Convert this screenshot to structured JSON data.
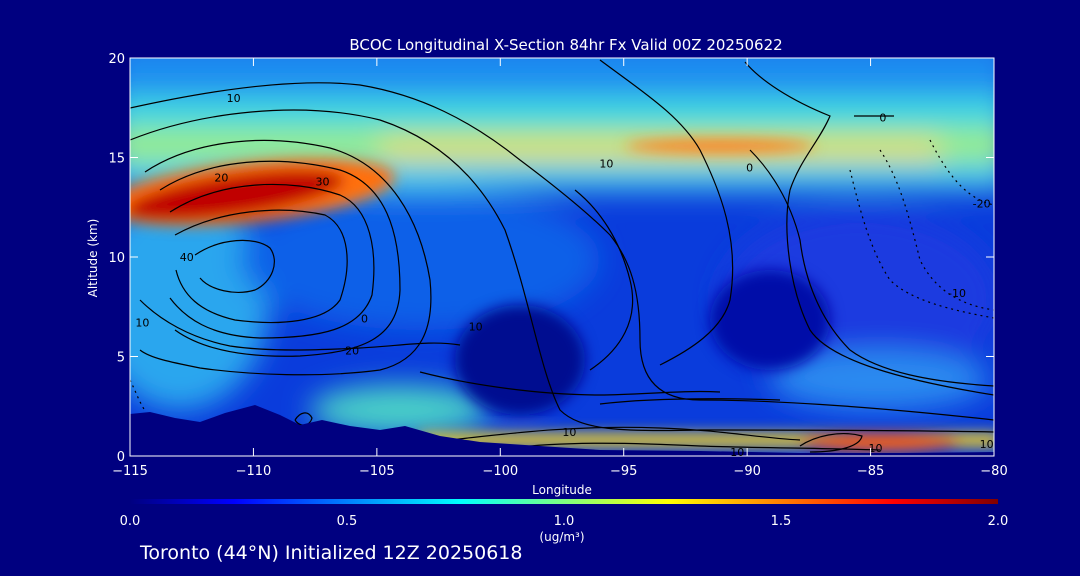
{
  "chart_data": {
    "type": "heatmap",
    "title": "BCOC Longitudinal X-Section 84hr  Fx Valid 00Z 20250622",
    "xlabel": "Longitude",
    "ylabel": "Altitude (km)",
    "xlim": [
      -115,
      -80
    ],
    "ylim": [
      0,
      20
    ],
    "x_ticks": [
      -115,
      -110,
      -105,
      -100,
      -95,
      -90,
      -85,
      -80
    ],
    "x_tick_labels": [
      "−115",
      "−110",
      "−105",
      "−100",
      "−95",
      "−90",
      "−85",
      "−80"
    ],
    "y_ticks": [
      0,
      5,
      10,
      15,
      20
    ],
    "y_tick_labels": [
      "0",
      "5",
      "10",
      "15",
      "20"
    ],
    "colorbar": {
      "min": 0.0,
      "max": 2.0,
      "ticks": [
        0.0,
        0.5,
        1.0,
        1.5,
        2.0
      ],
      "tick_labels": [
        "0.0",
        "0.5",
        "1.0",
        "1.5",
        "2.0"
      ],
      "label": "(ug/m³)",
      "colors": [
        "#000080",
        "#0000ff",
        "#0080ff",
        "#00ffff",
        "#80ff80",
        "#ffff00",
        "#ff8000",
        "#ff0000",
        "#800000"
      ]
    },
    "concentration_features": [
      {
        "feature": "plume core",
        "lon": [
          -115,
          -105
        ],
        "alt_km": [
          11.5,
          14.5
        ],
        "value": 2.0
      },
      {
        "feature": "upper layer",
        "lon": [
          -105,
          -82
        ],
        "alt_km": [
          14.0,
          16.5
        ],
        "value": 1.2
      },
      {
        "feature": "aloft band",
        "lon": [
          -115,
          -80
        ],
        "alt_km": [
          16.5,
          20.0
        ],
        "value": 0.6
      },
      {
        "feature": "surface band",
        "lon": [
          -100,
          -80
        ],
        "alt_km": [
          0.3,
          1.2
        ],
        "value": 1.5
      },
      {
        "feature": "mid-level minimum",
        "lon": [
          -102,
          -96
        ],
        "alt_km": [
          3.0,
          7.5
        ],
        "value": 0.05
      }
    ],
    "contour_labels": [
      {
        "text": "10",
        "lon": -110.8,
        "alt_km": 18.0
      },
      {
        "text": "20",
        "lon": -111.3,
        "alt_km": 14.0
      },
      {
        "text": "30",
        "lon": -107.2,
        "alt_km": 13.8
      },
      {
        "text": "40",
        "lon": -112.7,
        "alt_km": 10.0
      },
      {
        "text": "10",
        "lon": -114.5,
        "alt_km": 6.7
      },
      {
        "text": "20",
        "lon": -106.0,
        "alt_km": 5.3
      },
      {
        "text": "0",
        "lon": -105.5,
        "alt_km": 6.9
      },
      {
        "text": "10",
        "lon": -101.0,
        "alt_km": 6.5
      },
      {
        "text": "10",
        "lon": -95.7,
        "alt_km": 14.7
      },
      {
        "text": "0",
        "lon": -89.9,
        "alt_km": 14.5
      },
      {
        "text": "0",
        "lon": -84.5,
        "alt_km": 17.0
      },
      {
        "text": "-20",
        "lon": -80.5,
        "alt_km": 12.7
      },
      {
        "text": "-10",
        "lon": -81.5,
        "alt_km": 8.2
      },
      {
        "text": "10",
        "lon": -97.2,
        "alt_km": 1.2
      },
      {
        "text": "10",
        "lon": -90.4,
        "alt_km": 0.2
      },
      {
        "text": "10",
        "lon": -84.8,
        "alt_km": 0.4
      },
      {
        "text": "10",
        "lon": -80.3,
        "alt_km": 0.6
      }
    ]
  },
  "footer": "Toronto (44°N) Initialized 12Z 20250618"
}
